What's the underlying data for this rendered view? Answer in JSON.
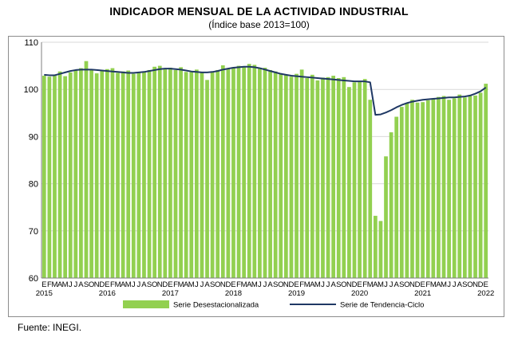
{
  "title": "INDICADOR MENSUAL DE LA ACTIVIDAD INDUSTRIAL",
  "subtitle": "(Índice base 2013=100)",
  "source": "Fuente: INEGI.",
  "colors": {
    "bar": "#92d050",
    "trend": "#1f3864",
    "grid": "#d9d9d9",
    "axis": "#7f7f7f"
  },
  "chart_data": {
    "type": "bar",
    "ylim": [
      60,
      110
    ],
    "yticks": [
      60,
      70,
      80,
      90,
      100,
      110
    ],
    "grid": true,
    "legend_position": "bottom",
    "month_letters": [
      "E",
      "F",
      "M",
      "A",
      "M",
      "J",
      "J",
      "A",
      "S",
      "O",
      "N",
      "D"
    ],
    "years": [
      "2015",
      "2016",
      "2017",
      "2018",
      "2019",
      "2020",
      "2021",
      "2022"
    ],
    "categories": [
      "E 2015",
      "F 2015",
      "M 2015",
      "A 2015",
      "M 2015",
      "J 2015",
      "J 2015",
      "A 2015",
      "S 2015",
      "O 2015",
      "N 2015",
      "D 2015",
      "E 2016",
      "F 2016",
      "M 2016",
      "A 2016",
      "M 2016",
      "J 2016",
      "J 2016",
      "A 2016",
      "S 2016",
      "O 2016",
      "N 2016",
      "D 2016",
      "E 2017",
      "F 2017",
      "M 2017",
      "A 2017",
      "M 2017",
      "J 2017",
      "J 2017",
      "A 2017",
      "S 2017",
      "O 2017",
      "N 2017",
      "D 2017",
      "E 2018",
      "F 2018",
      "M 2018",
      "A 2018",
      "M 2018",
      "J 2018",
      "J 2018",
      "A 2018",
      "S 2018",
      "O 2018",
      "N 2018",
      "D 2018",
      "E 2019",
      "F 2019",
      "M 2019",
      "A 2019",
      "M 2019",
      "J 2019",
      "J 2019",
      "A 2019",
      "S 2019",
      "O 2019",
      "N 2019",
      "D 2019",
      "E 2020",
      "F 2020",
      "M 2020",
      "A 2020",
      "M 2020",
      "J 2020",
      "J 2020",
      "A 2020",
      "S 2020",
      "O 2020",
      "N 2020",
      "D 2020",
      "E 2021",
      "F 2021",
      "M 2021",
      "A 2021",
      "M 2021",
      "J 2021",
      "J 2021",
      "A 2021",
      "S 2021",
      "O 2021",
      "N 2021",
      "D 2021",
      "E 2022"
    ],
    "series": [
      {
        "name": "Serie Desestacionalizada",
        "kind": "bar",
        "values": [
          102.9,
          102.7,
          103.0,
          103.8,
          102.8,
          103.6,
          104.1,
          104.5,
          106.0,
          104.1,
          103.4,
          104.0,
          104.3,
          104.5,
          103.5,
          103.8,
          104.0,
          103.3,
          103.5,
          103.8,
          104.1,
          104.8,
          105.0,
          104.3,
          104.6,
          104.1,
          104.7,
          103.7,
          103.9,
          104.2,
          103.7,
          102.0,
          103.6,
          104.1,
          105.1,
          104.3,
          104.7,
          105.0,
          104.9,
          105.4,
          105.2,
          104.6,
          104.6,
          104.1,
          103.8,
          103.3,
          103.1,
          102.7,
          103.3,
          104.2,
          102.4,
          103.1,
          101.9,
          102.5,
          102.6,
          102.9,
          102.4,
          102.6,
          100.5,
          101.5,
          101.8,
          102.2,
          97.8,
          73.2,
          72.1,
          85.8,
          90.9,
          94.2,
          96.3,
          97.1,
          97.8,
          97.2,
          97.3,
          97.7,
          98.1,
          98.4,
          98.6,
          97.8,
          98.1,
          98.9,
          98.3,
          98.6,
          98.7,
          99.3,
          101.2
        ]
      },
      {
        "name": "Serie de Tendencia-Ciclo",
        "kind": "line",
        "values": [
          103.1,
          103.0,
          103.0,
          103.3,
          103.6,
          103.9,
          104.1,
          104.2,
          104.2,
          104.2,
          104.1,
          104.0,
          103.9,
          103.8,
          103.7,
          103.6,
          103.5,
          103.5,
          103.6,
          103.7,
          103.9,
          104.1,
          104.3,
          104.4,
          104.4,
          104.3,
          104.2,
          104.0,
          103.8,
          103.7,
          103.6,
          103.6,
          103.7,
          103.9,
          104.2,
          104.4,
          104.6,
          104.7,
          104.8,
          104.8,
          104.7,
          104.5,
          104.2,
          103.9,
          103.6,
          103.3,
          103.1,
          102.9,
          102.8,
          102.7,
          102.6,
          102.5,
          102.4,
          102.3,
          102.2,
          102.1,
          102.0,
          101.9,
          101.8,
          101.7,
          101.7,
          101.7,
          101.5,
          94.6,
          94.7,
          95.1,
          95.6,
          96.2,
          96.7,
          97.1,
          97.4,
          97.6,
          97.8,
          97.9,
          98.0,
          98.1,
          98.2,
          98.3,
          98.3,
          98.4,
          98.5,
          98.7,
          99.1,
          99.6,
          100.4
        ]
      }
    ]
  }
}
